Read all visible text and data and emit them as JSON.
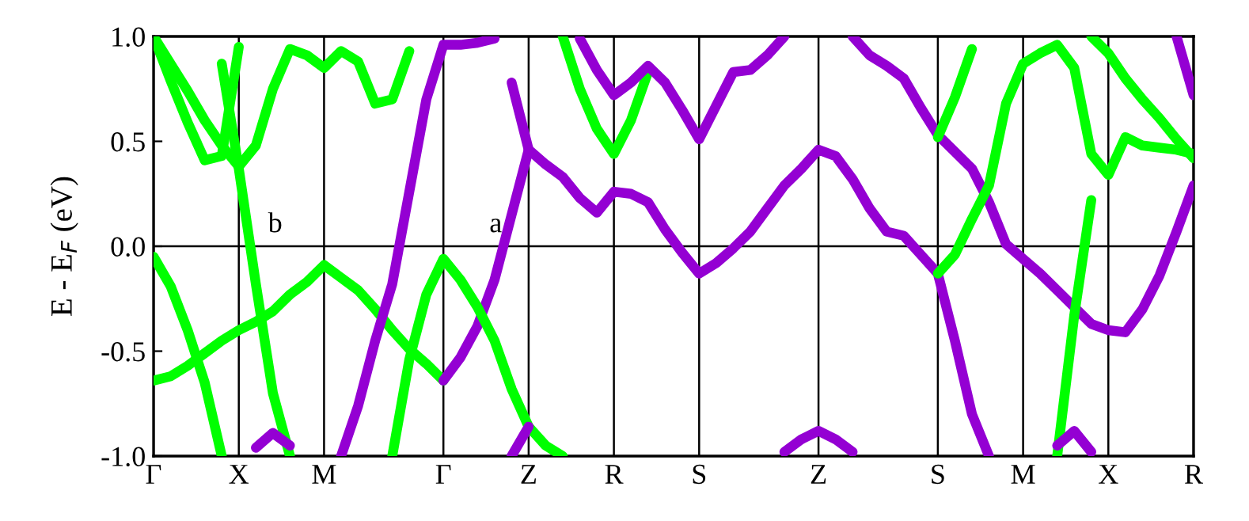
{
  "chart_data": {
    "type": "line",
    "ylabel": "E - E$_{F}$ (eV)",
    "categories": [
      "Γ",
      null,
      null,
      null,
      null,
      "X",
      null,
      null,
      null,
      null,
      "M",
      null,
      null,
      null,
      null,
      null,
      null,
      "Γ",
      null,
      null,
      null,
      null,
      "Z",
      null,
      null,
      null,
      null,
      "R",
      null,
      null,
      null,
      null,
      "S",
      null,
      null,
      null,
      null,
      null,
      null,
      "Z",
      null,
      null,
      null,
      null,
      null,
      null,
      "S",
      null,
      null,
      null,
      null,
      "M",
      null,
      null,
      null,
      null,
      "X",
      null,
      null,
      null,
      null,
      "R"
    ],
    "ylim": [
      -1,
      1
    ],
    "yticks": [
      {
        "value": -1,
        "label": "-1.0"
      },
      {
        "value": -0.5,
        "label": "-0.5"
      },
      {
        "value": 0,
        "label": "0.0"
      },
      {
        "value": 0.5,
        "label": "0.5"
      },
      {
        "value": 1,
        "label": "1.0"
      }
    ],
    "grid": "x",
    "line_style": "solid",
    "ref_lines": [
      {
        "axis": "y",
        "value": 0,
        "color": "#000000"
      }
    ],
    "annotations": [
      "a",
      "b"
    ],
    "series": [
      {
        "color": "#00ff00",
        "values": [
          -0.05,
          -0.19,
          -0.4,
          -0.65,
          -1.0,
          null,
          null,
          null,
          null,
          null,
          null,
          null,
          null,
          null,
          null,
          null,
          null,
          null,
          null,
          null,
          null,
          null,
          null,
          null,
          null,
          null,
          null,
          null,
          null,
          null,
          null,
          null,
          null,
          null,
          null,
          null,
          null,
          null,
          null,
          null,
          null,
          null,
          null,
          null,
          null,
          null,
          null,
          null,
          null,
          null,
          null,
          null,
          null,
          null,
          null,
          null,
          null,
          null,
          null,
          null,
          null,
          null
        ]
      },
      {
        "color": "#00ff00",
        "values": [
          -0.64,
          -0.62,
          -0.57,
          -0.51,
          -0.45,
          -0.4,
          -0.36,
          -0.31,
          -0.23,
          -0.17,
          -0.09,
          -0.15,
          -0.21,
          -0.3,
          -0.4,
          -0.49,
          -0.56,
          -0.64,
          null,
          null,
          null,
          null,
          null,
          null,
          null,
          null,
          null,
          null,
          null,
          null,
          null,
          null,
          null,
          null,
          null,
          null,
          null,
          null,
          null,
          null,
          null,
          null,
          null,
          null,
          null,
          null,
          null,
          null,
          null,
          null,
          null,
          null,
          null,
          null,
          null,
          null,
          null,
          null,
          null,
          null,
          null,
          null
        ]
      },
      {
        "color": "#9400d3",
        "values": [
          null,
          null,
          null,
          null,
          null,
          null,
          null,
          null,
          null,
          null,
          null,
          null,
          null,
          null,
          null,
          null,
          null,
          -0.64,
          -0.53,
          -0.38,
          -0.16,
          0.15,
          0.46,
          null,
          null,
          null,
          null,
          null,
          null,
          null,
          null,
          null,
          null,
          null,
          null,
          null,
          null,
          null,
          null,
          null,
          null,
          null,
          null,
          null,
          null,
          null,
          null,
          null,
          null,
          null,
          null,
          null,
          null,
          null,
          null,
          null,
          null,
          null,
          null,
          null,
          null,
          null
        ]
      },
      {
        "color": "#00ff00",
        "values": [
          null,
          null,
          null,
          null,
          null,
          null,
          null,
          null,
          null,
          null,
          null,
          null,
          null,
          null,
          -1.0,
          -0.54,
          -0.23,
          -0.06,
          -0.16,
          -0.29,
          -0.45,
          -0.68,
          -0.86,
          -0.95,
          -1.0,
          null,
          null,
          null,
          null,
          null,
          null,
          null,
          null,
          null,
          null,
          null,
          null,
          null,
          null,
          null,
          null,
          null,
          null,
          null,
          null,
          null,
          null,
          null,
          null,
          null,
          null,
          null,
          null,
          null,
          null,
          null,
          null,
          null,
          null,
          null,
          null,
          null
        ]
      },
      {
        "color": "#00ff00",
        "values": [
          null,
          null,
          null,
          null,
          0.87,
          0.37,
          -0.18,
          -0.7,
          -1.0,
          null,
          null,
          null,
          null,
          null,
          null,
          null,
          null,
          null,
          null,
          null,
          null,
          null,
          null,
          null,
          null,
          null,
          null,
          null,
          null,
          null,
          null,
          null,
          null,
          null,
          null,
          null,
          null,
          null,
          null,
          null,
          null,
          null,
          null,
          null,
          null,
          null,
          null,
          null,
          null,
          null,
          null,
          null,
          null,
          null,
          null,
          null,
          null,
          null,
          null,
          null,
          null,
          null
        ]
      },
      {
        "color": "#9400d3",
        "values": [
          null,
          null,
          null,
          null,
          null,
          null,
          null,
          null,
          null,
          null,
          null,
          -1.0,
          -0.76,
          -0.45,
          -0.18,
          0.26,
          0.7,
          0.96,
          0.96,
          0.97,
          0.99,
          null,
          null,
          null,
          null,
          null,
          null,
          null,
          null,
          null,
          null,
          null,
          null,
          null,
          null,
          null,
          null,
          null,
          null,
          null,
          null,
          null,
          null,
          null,
          null,
          null,
          null,
          null,
          null,
          null,
          null,
          null,
          null,
          null,
          null,
          null,
          null,
          null,
          null,
          null,
          null,
          null
        ]
      },
      {
        "color": "#00ff00",
        "values": [
          1.0,
          0.79,
          0.59,
          0.41,
          0.43,
          0.95,
          null,
          null,
          null,
          null,
          null,
          null,
          null,
          null,
          null,
          null,
          null,
          null,
          null,
          null,
          null,
          null,
          null,
          null,
          null,
          null,
          null,
          null,
          null,
          null,
          null,
          null,
          null,
          null,
          null,
          null,
          null,
          null,
          null,
          null,
          null,
          null,
          null,
          null,
          null,
          null,
          null,
          null,
          null,
          null,
          null,
          null,
          null,
          null,
          null,
          null,
          null,
          null,
          null,
          null,
          null,
          null
        ]
      },
      {
        "color": "#00ff00",
        "values": [
          1.0,
          0.87,
          0.74,
          0.6,
          0.48,
          0.38,
          0.48,
          0.75,
          0.94,
          0.91,
          0.85,
          0.93,
          0.88,
          0.68,
          0.7,
          0.93,
          null,
          null,
          null,
          null,
          null,
          null,
          null,
          null,
          null,
          null,
          null,
          null,
          null,
          null,
          null,
          null,
          null,
          null,
          null,
          null,
          null,
          null,
          null,
          null,
          null,
          null,
          null,
          null,
          null,
          null,
          null,
          null,
          null,
          null,
          null,
          null,
          null,
          null,
          null,
          null,
          null,
          null,
          null,
          null,
          null,
          null
        ]
      },
      {
        "color": "#9400d3",
        "values": [
          null,
          null,
          null,
          null,
          null,
          null,
          null,
          null,
          null,
          null,
          null,
          null,
          null,
          null,
          null,
          null,
          null,
          null,
          null,
          null,
          null,
          0.78,
          0.46,
          null,
          null,
          null,
          null,
          null,
          null,
          null,
          null,
          null,
          null,
          null,
          null,
          null,
          null,
          null,
          null,
          null,
          null,
          null,
          null,
          null,
          null,
          null,
          null,
          null,
          null,
          null,
          null,
          null,
          null,
          null,
          null,
          null,
          null,
          null,
          null,
          null,
          null,
          null
        ]
      },
      {
        "color": "#9400d3",
        "values": [
          null,
          null,
          null,
          null,
          null,
          null,
          null,
          null,
          null,
          null,
          null,
          null,
          null,
          null,
          null,
          null,
          null,
          null,
          null,
          null,
          null,
          null,
          0.46,
          0.39,
          0.33,
          0.23,
          0.16,
          0.26,
          0.25,
          0.21,
          0.08,
          -0.03,
          -0.13,
          -0.08,
          -0.01,
          0.07,
          0.18,
          0.29,
          0.37,
          0.46,
          0.43,
          0.32,
          0.18,
          0.07,
          0.05,
          -0.04,
          -0.13,
          -0.45,
          -0.8,
          -1.0,
          null,
          null,
          null,
          null,
          null,
          null,
          null,
          null,
          null,
          null,
          null,
          null
        ]
      },
      {
        "color": "#9400d3",
        "values": [
          null,
          null,
          null,
          null,
          null,
          null,
          null,
          null,
          null,
          null,
          null,
          null,
          null,
          null,
          null,
          null,
          null,
          null,
          null,
          null,
          null,
          null,
          null,
          null,
          null,
          null,
          null,
          null,
          null,
          null,
          null,
          null,
          null,
          null,
          null,
          null,
          null,
          null,
          null,
          null,
          null,
          1.0,
          0.91,
          0.86,
          0.8,
          0.66,
          0.53,
          0.45,
          0.37,
          0.21,
          0.01,
          -0.06,
          -0.13,
          -0.21,
          -0.29,
          -0.37,
          -0.4,
          -0.41,
          -0.3,
          -0.14,
          0.07,
          0.29
        ]
      },
      {
        "color": "#00ff00",
        "values": [
          null,
          null,
          null,
          null,
          null,
          null,
          null,
          null,
          null,
          null,
          null,
          null,
          null,
          null,
          null,
          null,
          null,
          null,
          null,
          null,
          null,
          null,
          null,
          null,
          null,
          null,
          null,
          null,
          null,
          null,
          null,
          null,
          null,
          null,
          null,
          null,
          null,
          null,
          null,
          null,
          null,
          null,
          null,
          null,
          null,
          null,
          -0.13,
          -0.04,
          0.13,
          0.29,
          0.68,
          0.87,
          0.92,
          0.96,
          0.85,
          0.44,
          0.34,
          0.52,
          0.48,
          0.47,
          0.46,
          0.44
        ]
      },
      {
        "color": "#00ff00",
        "values": [
          null,
          null,
          null,
          null,
          null,
          null,
          null,
          null,
          null,
          null,
          null,
          null,
          null,
          null,
          null,
          null,
          null,
          null,
          null,
          null,
          null,
          null,
          null,
          null,
          null,
          null,
          null,
          null,
          null,
          null,
          null,
          null,
          null,
          null,
          null,
          null,
          null,
          null,
          null,
          null,
          null,
          null,
          null,
          null,
          null,
          null,
          null,
          null,
          null,
          null,
          null,
          null,
          null,
          -1.0,
          -0.33,
          0.22,
          null,
          null,
          null,
          null,
          null,
          null
        ]
      },
      {
        "color": "#00ff00",
        "values": [
          null,
          null,
          null,
          null,
          null,
          null,
          null,
          null,
          null,
          null,
          null,
          null,
          null,
          null,
          null,
          null,
          null,
          null,
          null,
          null,
          null,
          null,
          null,
          null,
          null,
          null,
          null,
          null,
          null,
          null,
          null,
          null,
          null,
          null,
          null,
          null,
          null,
          null,
          null,
          null,
          null,
          null,
          null,
          null,
          null,
          null,
          0.52,
          0.71,
          0.94,
          null,
          null,
          null,
          null,
          null,
          null,
          null,
          null,
          null,
          null,
          null,
          null,
          null
        ]
      },
      {
        "color": "#00ff00",
        "values": [
          null,
          null,
          null,
          null,
          null,
          null,
          null,
          null,
          null,
          null,
          null,
          null,
          null,
          null,
          null,
          null,
          null,
          null,
          null,
          null,
          null,
          null,
          null,
          null,
          null,
          null,
          null,
          null,
          null,
          null,
          null,
          null,
          null,
          null,
          null,
          null,
          null,
          null,
          null,
          null,
          null,
          null,
          null,
          null,
          null,
          null,
          null,
          null,
          null,
          null,
          null,
          null,
          null,
          null,
          null,
          1.0,
          0.92,
          0.8,
          0.7,
          0.61,
          0.51,
          0.42
        ]
      },
      {
        "color": "#9400d3",
        "values": [
          null,
          null,
          null,
          null,
          null,
          null,
          null,
          null,
          null,
          null,
          null,
          null,
          null,
          null,
          null,
          null,
          null,
          null,
          null,
          null,
          null,
          null,
          null,
          null,
          null,
          null,
          null,
          null,
          null,
          null,
          null,
          null,
          null,
          null,
          null,
          null,
          null,
          null,
          null,
          null,
          null,
          null,
          null,
          null,
          null,
          null,
          null,
          null,
          null,
          null,
          null,
          null,
          null,
          null,
          null,
          null,
          null,
          null,
          null,
          null,
          1.0,
          0.72
        ]
      },
      {
        "color": "#00ff00",
        "values": [
          null,
          null,
          null,
          null,
          null,
          null,
          null,
          null,
          null,
          null,
          null,
          null,
          null,
          null,
          null,
          null,
          null,
          null,
          null,
          null,
          null,
          null,
          null,
          null,
          1.0,
          0.75,
          0.56,
          0.44,
          0.6,
          0.83,
          null,
          null,
          null,
          null,
          null,
          null,
          null,
          null,
          null,
          null,
          null,
          null,
          null,
          null,
          null,
          null,
          null,
          null,
          null,
          null,
          null,
          null,
          null,
          null,
          null,
          null,
          null,
          null,
          null,
          null,
          null,
          null
        ]
      },
      {
        "color": "#9400d3",
        "values": [
          null,
          null,
          null,
          null,
          null,
          null,
          null,
          null,
          null,
          null,
          null,
          null,
          null,
          null,
          null,
          null,
          null,
          null,
          null,
          null,
          null,
          null,
          null,
          null,
          null,
          0.99,
          0.84,
          0.72,
          0.78,
          0.86,
          0.78,
          0.65,
          0.51,
          0.67,
          0.83,
          0.84,
          0.91,
          1.0,
          null,
          null,
          null,
          null,
          null,
          null,
          null,
          null,
          null,
          null,
          null,
          null,
          null,
          null,
          null,
          null,
          null,
          null,
          null,
          null,
          null,
          null,
          null,
          null
        ]
      },
      {
        "color": "#9400d3",
        "values": [
          null,
          null,
          null,
          null,
          null,
          null,
          -0.96,
          -0.89,
          -0.95,
          null,
          null,
          null,
          null,
          null,
          null,
          null,
          null,
          null,
          null,
          null,
          null,
          null,
          null,
          null,
          null,
          null,
          null,
          null,
          null,
          null,
          null,
          null,
          null,
          null,
          null,
          null,
          null,
          null,
          null,
          null,
          null,
          null,
          null,
          null,
          null,
          null,
          null,
          null,
          null,
          null,
          null,
          null,
          null,
          null,
          null,
          null,
          null,
          null,
          null,
          null,
          null,
          null
        ]
      },
      {
        "color": "#9400d3",
        "values": [
          null,
          null,
          null,
          null,
          null,
          null,
          null,
          null,
          null,
          null,
          null,
          null,
          null,
          null,
          null,
          null,
          null,
          null,
          null,
          null,
          null,
          -1.0,
          -0.86,
          null,
          null,
          null,
          null,
          null,
          null,
          null,
          null,
          null,
          null,
          null,
          null,
          null,
          null,
          null,
          null,
          null,
          null,
          null,
          null,
          null,
          null,
          null,
          null,
          null,
          null,
          null,
          null,
          null,
          null,
          null,
          null,
          null,
          null,
          null,
          null,
          null,
          null,
          null
        ]
      },
      {
        "color": "#9400d3",
        "values": [
          null,
          null,
          null,
          null,
          null,
          null,
          null,
          null,
          null,
          null,
          null,
          null,
          null,
          null,
          null,
          null,
          null,
          null,
          null,
          null,
          null,
          null,
          null,
          null,
          null,
          null,
          null,
          null,
          null,
          null,
          null,
          null,
          null,
          null,
          null,
          null,
          null,
          -0.98,
          -0.92,
          -0.88,
          -0.92,
          -0.98,
          null,
          null,
          null,
          null,
          null,
          null,
          null,
          null,
          null,
          null,
          null,
          null,
          null,
          null,
          null,
          null,
          null,
          null,
          null,
          null
        ]
      },
      {
        "color": "#9400d3",
        "values": [
          null,
          null,
          null,
          null,
          null,
          null,
          null,
          null,
          null,
          null,
          null,
          null,
          null,
          null,
          null,
          null,
          null,
          null,
          null,
          null,
          null,
          null,
          null,
          null,
          null,
          null,
          null,
          null,
          null,
          null,
          null,
          null,
          null,
          null,
          null,
          null,
          null,
          null,
          null,
          null,
          null,
          null,
          null,
          null,
          null,
          null,
          null,
          null,
          null,
          null,
          null,
          null,
          null,
          -0.95,
          -0.88,
          -0.98,
          null,
          null,
          null,
          null,
          null,
          null
        ]
      }
    ]
  }
}
